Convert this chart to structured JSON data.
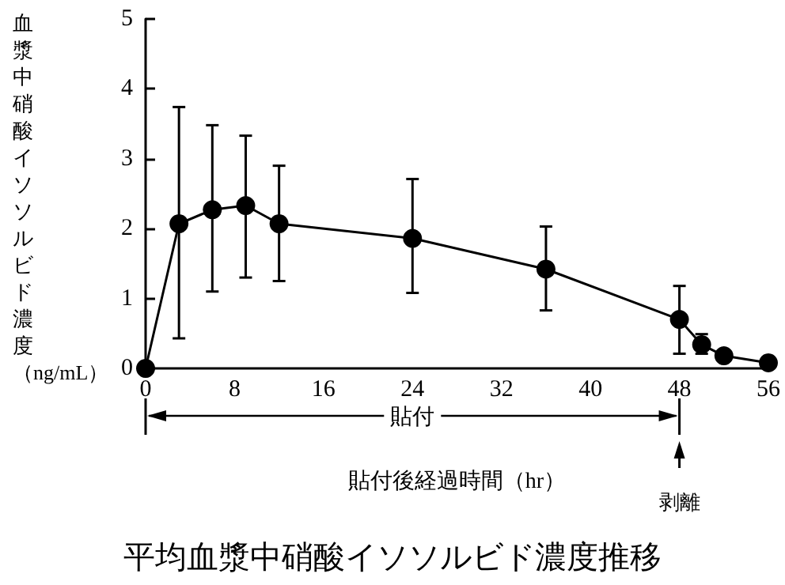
{
  "chart_data": {
    "type": "line",
    "title": "平均血漿中硝酸イソソルビド濃度推移",
    "xlabel": "貼付後経過時間（hr）",
    "ylabel": "血漿中硝酸イソソルビド濃度（ng/mL）",
    "x": [
      0,
      3,
      6,
      9,
      12,
      24,
      36,
      48,
      50,
      52,
      56
    ],
    "series": [
      {
        "color": "#000000",
        "values": [
          0,
          2.07,
          2.27,
          2.33,
          2.07,
          1.86,
          1.42,
          0.7,
          0.34,
          0.18,
          0.08
        ],
        "errors": [
          null,
          [
            0.43,
            3.74
          ],
          [
            1.1,
            3.48
          ],
          [
            1.3,
            3.33
          ],
          [
            1.25,
            2.9
          ],
          [
            1.08,
            2.71
          ],
          [
            0.83,
            2.03
          ],
          [
            0.21,
            1.18
          ],
          [
            0.21,
            0.49
          ],
          null,
          null
        ]
      }
    ],
    "xlim": [
      0,
      56
    ],
    "xticks": [
      0,
      8,
      16,
      24,
      32,
      40,
      48,
      56
    ],
    "ylim": [
      0,
      5
    ],
    "yticks": [
      0,
      1,
      2,
      3,
      4,
      5
    ],
    "annotations": [
      "貼付"
    ],
    "ref_lines": [
      {
        "axis": "x",
        "value": 48,
        "label": "剥離"
      }
    ],
    "marker": "circle",
    "line_style": "solid",
    "grid": false
  }
}
